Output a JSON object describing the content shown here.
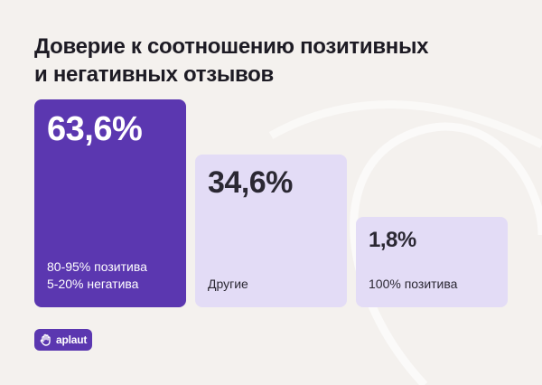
{
  "title_lines": [
    "Доверие к соотношению позитивных",
    "и негативных отзывов"
  ],
  "logo": {
    "text": "aplaut",
    "icon": "hand-icon"
  },
  "colors": {
    "background": "#f4f1ee",
    "highlight": "#5b37b0",
    "muted": "#e3dcf6",
    "text_dark": "#2b2833",
    "text_light": "#ffffff"
  },
  "chart_data": {
    "type": "bar",
    "categories": [
      [
        "80-95% позитива",
        "5-20% негатива"
      ],
      [
        "Другие"
      ],
      [
        "100% позитива"
      ]
    ],
    "values": [
      63.6,
      34.6,
      1.8
    ],
    "value_labels": [
      "63,6%",
      "34,6%",
      "1,8%"
    ],
    "title": "Доверие к соотношению позитивных и негативных отзывов",
    "xlabel": "",
    "ylabel": "",
    "grid": false,
    "legend": "none"
  }
}
